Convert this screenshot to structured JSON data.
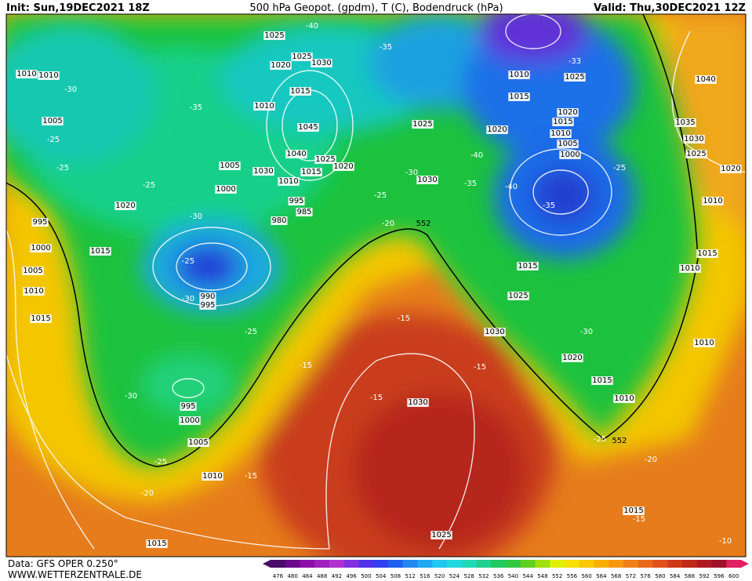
{
  "header": {
    "init": "Init: Sun,19DEC2021 18Z",
    "title": "500 hPa Geopot. (gpdm), T (C), Bodendruck (hPa)",
    "valid": "Valid: Thu,30DEC2021 12Z"
  },
  "footer": {
    "data": "Data: GFS OPER 0.250°",
    "site": "WWW.WETTERZENTRALE.DE"
  },
  "colorbar": {
    "labels": [
      476,
      480,
      484,
      488,
      492,
      496,
      500,
      504,
      508,
      512,
      516,
      520,
      524,
      528,
      532,
      536,
      540,
      544,
      548,
      552,
      556,
      560,
      564,
      568,
      572,
      576,
      580,
      584,
      588,
      592,
      596,
      600
    ]
  },
  "map": {
    "pressure_labels": [
      1025,
      1020,
      1025,
      1030,
      1015,
      1010,
      1045,
      1040,
      1025,
      1015,
      1020,
      1030,
      1010,
      1005,
      1000,
      995,
      985,
      980,
      990,
      995,
      995,
      1000,
      1005,
      1010,
      1015,
      1025,
      1030,
      1025,
      1030,
      1010,
      1015,
      1025,
      1020,
      1015,
      1010,
      1005,
      1000,
      1020,
      1015,
      1025,
      1030,
      1020,
      1015,
      1010,
      1040,
      1035,
      1030,
      1025,
      1020,
      1010,
      1015,
      1010,
      1010,
      1015,
      1010,
      1010,
      1005,
      1020,
      995,
      1000,
      1005,
      1010,
      1015,
      1015
    ],
    "temperature_labels": [
      "-40",
      "-35",
      "-35",
      "-30",
      "-25",
      "-25",
      "-25",
      "-30",
      "-25",
      "-30",
      "-25",
      "-30",
      "-25",
      "-20",
      "-15",
      "-15",
      "-15",
      "-15",
      "-20",
      "-25",
      "-30",
      "-35",
      "-40",
      "-40",
      "-35",
      "-33",
      "-25",
      "-30",
      "-15",
      "-25",
      "-20",
      "-15",
      "-10"
    ],
    "contour_labels": [
      "552",
      "552"
    ]
  }
}
